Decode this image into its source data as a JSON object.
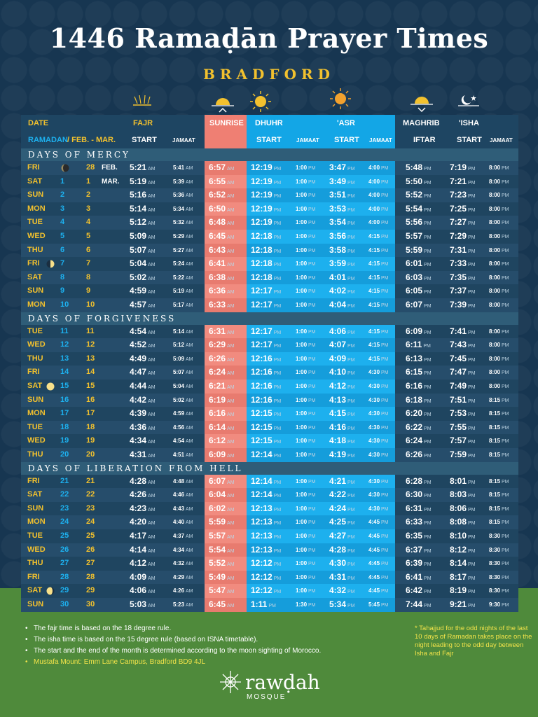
{
  "title": "1446 Ramaḍān Prayer Times",
  "subtitle": "BRADFORD",
  "headers": {
    "date": "DATE",
    "ramadan": "RAMADAN",
    "months": "/ FEB. - MAR.",
    "fajr": "FAJR",
    "start": "START",
    "jamaat": "JAMAAT",
    "sunrise": "SUNRISE",
    "dhuhr": "DHUHR",
    "asr": "'ASR",
    "maghrib": "MAGHRIB",
    "iftar": "IFTAR",
    "isha": "'ISHA"
  },
  "sections": [
    "DAYS OF MERCY",
    "DAYS OF FORGIVENESS",
    "DAYS OF LIBERATION FROM HELL"
  ],
  "rows": [
    {
      "day": "FRI",
      "ram": "",
      "greg": "28",
      "mon": "FEB.",
      "fajr": "5:21",
      "fj": "5:41",
      "sun": "6:57",
      "dhuhr": "12:19",
      "dj": "1:00",
      "asr": "3:47",
      "aj": "4:00",
      "mag": "5:48",
      "isha": "7:19",
      "ij": "8:00",
      "moon": "new"
    },
    {
      "day": "SAT",
      "ram": "1",
      "greg": "1",
      "mon": "MAR.",
      "fajr": "5:19",
      "fj": "5:39",
      "sun": "6:55",
      "dhuhr": "12:19",
      "dj": "1:00",
      "asr": "3:49",
      "aj": "4:00",
      "mag": "5:50",
      "isha": "7:21",
      "ij": "8:00",
      "moon": ""
    },
    {
      "day": "SUN",
      "ram": "2",
      "greg": "2",
      "mon": "",
      "fajr": "5:16",
      "fj": "5:36",
      "sun": "6:52",
      "dhuhr": "12:19",
      "dj": "1:00",
      "asr": "3:51",
      "aj": "4:00",
      "mag": "5:52",
      "isha": "7:23",
      "ij": "8:00",
      "moon": ""
    },
    {
      "day": "MON",
      "ram": "3",
      "greg": "3",
      "mon": "",
      "fajr": "5:14",
      "fj": "5:34",
      "sun": "6:50",
      "dhuhr": "12:19",
      "dj": "1:00",
      "asr": "3:53",
      "aj": "4:00",
      "mag": "5:54",
      "isha": "7:25",
      "ij": "8:00",
      "moon": ""
    },
    {
      "day": "TUE",
      "ram": "4",
      "greg": "4",
      "mon": "",
      "fajr": "5:12",
      "fj": "5:32",
      "sun": "6:48",
      "dhuhr": "12:19",
      "dj": "1:00",
      "asr": "3:54",
      "aj": "4:00",
      "mag": "5:56",
      "isha": "7:27",
      "ij": "8:00",
      "moon": ""
    },
    {
      "day": "WED",
      "ram": "5",
      "greg": "5",
      "mon": "",
      "fajr": "5:09",
      "fj": "5:29",
      "sun": "6:45",
      "dhuhr": "12:18",
      "dj": "1:00",
      "asr": "3:56",
      "aj": "4:15",
      "mag": "5:57",
      "isha": "7:29",
      "ij": "8:00",
      "moon": ""
    },
    {
      "day": "THU",
      "ram": "6",
      "greg": "6",
      "mon": "",
      "fajr": "5:07",
      "fj": "5:27",
      "sun": "6:43",
      "dhuhr": "12:18",
      "dj": "1:00",
      "asr": "3:58",
      "aj": "4:15",
      "mag": "5:59",
      "isha": "7:31",
      "ij": "8:00",
      "moon": ""
    },
    {
      "day": "FRI",
      "ram": "7",
      "greg": "7",
      "mon": "",
      "fajr": "5:04",
      "fj": "5:24",
      "sun": "6:41",
      "dhuhr": "12:18",
      "dj": "1:00",
      "asr": "3:59",
      "aj": "4:15",
      "mag": "6:01",
      "isha": "7:33",
      "ij": "8:00",
      "moon": "half"
    },
    {
      "day": "SAT",
      "ram": "8",
      "greg": "8",
      "mon": "",
      "fajr": "5:02",
      "fj": "5:22",
      "sun": "6:38",
      "dhuhr": "12:18",
      "dj": "1:00",
      "asr": "4:01",
      "aj": "4:15",
      "mag": "6:03",
      "isha": "7:35",
      "ij": "8:00",
      "moon": ""
    },
    {
      "day": "SUN",
      "ram": "9",
      "greg": "9",
      "mon": "",
      "fajr": "4:59",
      "fj": "5:19",
      "sun": "6:36",
      "dhuhr": "12:17",
      "dj": "1:00",
      "asr": "4:02",
      "aj": "4:15",
      "mag": "6:05",
      "isha": "7:37",
      "ij": "8:00",
      "moon": ""
    },
    {
      "day": "MON",
      "ram": "10",
      "greg": "10",
      "mon": "",
      "fajr": "4:57",
      "fj": "5:17",
      "sun": "6:33",
      "dhuhr": "12:17",
      "dj": "1:00",
      "asr": "4:04",
      "aj": "4:15",
      "mag": "6:07",
      "isha": "7:39",
      "ij": "8:00",
      "moon": ""
    },
    {
      "day": "TUE",
      "ram": "11",
      "greg": "11",
      "mon": "",
      "fajr": "4:54",
      "fj": "5:14",
      "sun": "6:31",
      "dhuhr": "12:17",
      "dj": "1:00",
      "asr": "4:06",
      "aj": "4:15",
      "mag": "6:09",
      "isha": "7:41",
      "ij": "8:00",
      "moon": ""
    },
    {
      "day": "WED",
      "ram": "12",
      "greg": "12",
      "mon": "",
      "fajr": "4:52",
      "fj": "5:12",
      "sun": "6:29",
      "dhuhr": "12:17",
      "dj": "1:00",
      "asr": "4:07",
      "aj": "4:15",
      "mag": "6:11",
      "isha": "7:43",
      "ij": "8:00",
      "moon": ""
    },
    {
      "day": "THU",
      "ram": "13",
      "greg": "13",
      "mon": "",
      "fajr": "4:49",
      "fj": "5:09",
      "sun": "6:26",
      "dhuhr": "12:16",
      "dj": "1:00",
      "asr": "4:09",
      "aj": "4:15",
      "mag": "6:13",
      "isha": "7:45",
      "ij": "8:00",
      "moon": ""
    },
    {
      "day": "FRI",
      "ram": "14",
      "greg": "14",
      "mon": "",
      "fajr": "4:47",
      "fj": "5:07",
      "sun": "6:24",
      "dhuhr": "12:16",
      "dj": "1:00",
      "asr": "4:10",
      "aj": "4:30",
      "mag": "6:15",
      "isha": "7:47",
      "ij": "8:00",
      "moon": ""
    },
    {
      "day": "SAT",
      "ram": "15",
      "greg": "15",
      "mon": "",
      "fajr": "4:44",
      "fj": "5:04",
      "sun": "6:21",
      "dhuhr": "12:16",
      "dj": "1:00",
      "asr": "4:12",
      "aj": "4:30",
      "mag": "6:16",
      "isha": "7:49",
      "ij": "8:00",
      "moon": "full"
    },
    {
      "day": "SUN",
      "ram": "16",
      "greg": "16",
      "mon": "",
      "fajr": "4:42",
      "fj": "5:02",
      "sun": "6:19",
      "dhuhr": "12:16",
      "dj": "1:00",
      "asr": "4:13",
      "aj": "4:30",
      "mag": "6:18",
      "isha": "7:51",
      "ij": "8:15",
      "moon": ""
    },
    {
      "day": "MON",
      "ram": "17",
      "greg": "17",
      "mon": "",
      "fajr": "4:39",
      "fj": "4:59",
      "sun": "6:16",
      "dhuhr": "12:15",
      "dj": "1:00",
      "asr": "4:15",
      "aj": "4:30",
      "mag": "6:20",
      "isha": "7:53",
      "ij": "8:15",
      "moon": ""
    },
    {
      "day": "TUE",
      "ram": "18",
      "greg": "18",
      "mon": "",
      "fajr": "4:36",
      "fj": "4:56",
      "sun": "6:14",
      "dhuhr": "12:15",
      "dj": "1:00",
      "asr": "4:16",
      "aj": "4:30",
      "mag": "6:22",
      "isha": "7:55",
      "ij": "8:15",
      "moon": ""
    },
    {
      "day": "WED",
      "ram": "19",
      "greg": "19",
      "mon": "",
      "fajr": "4:34",
      "fj": "4:54",
      "sun": "6:12",
      "dhuhr": "12:15",
      "dj": "1:00",
      "asr": "4:18",
      "aj": "4:30",
      "mag": "6:24",
      "isha": "7:57",
      "ij": "8:15",
      "moon": ""
    },
    {
      "day": "THU",
      "ram": "20",
      "greg": "20",
      "mon": "",
      "fajr": "4:31",
      "fj": "4:51",
      "sun": "6:09",
      "dhuhr": "12:14",
      "dj": "1:00",
      "asr": "4:19",
      "aj": "4:30",
      "mag": "6:26",
      "isha": "7:59",
      "ij": "8:15",
      "moon": ""
    },
    {
      "day": "FRI",
      "ram": "21",
      "greg": "21",
      "mon": "",
      "fajr": "4:28",
      "fj": "4:48",
      "sun": "6:07",
      "dhuhr": "12:14",
      "dj": "1:00",
      "asr": "4:21",
      "aj": "4:30",
      "mag": "6:28",
      "isha": "8:01",
      "ij": "8:15",
      "moon": ""
    },
    {
      "day": "SAT",
      "ram": "22",
      "greg": "22",
      "mon": "",
      "fajr": "4:26",
      "fj": "4:46",
      "sun": "6:04",
      "dhuhr": "12:14",
      "dj": "1:00",
      "asr": "4:22",
      "aj": "4:30",
      "mag": "6:30",
      "isha": "8:03",
      "ij": "8:15",
      "moon": ""
    },
    {
      "day": "SUN",
      "ram": "23",
      "greg": "23",
      "mon": "",
      "fajr": "4:23",
      "fj": "4:43",
      "sun": "6:02",
      "dhuhr": "12:13",
      "dj": "1:00",
      "asr": "4:24",
      "aj": "4:30",
      "mag": "6:31",
      "isha": "8:06",
      "ij": "8:15",
      "moon": ""
    },
    {
      "day": "MON",
      "ram": "24",
      "greg": "24",
      "mon": "",
      "fajr": "4:20",
      "fj": "4:40",
      "sun": "5:59",
      "dhuhr": "12:13",
      "dj": "1:00",
      "asr": "4:25",
      "aj": "4:45",
      "mag": "6:33",
      "isha": "8:08",
      "ij": "8:15",
      "moon": ""
    },
    {
      "day": "TUE",
      "ram": "25",
      "greg": "25",
      "mon": "",
      "fajr": "4:17",
      "fj": "4:37",
      "sun": "5:57",
      "dhuhr": "12:13",
      "dj": "1:00",
      "asr": "4:27",
      "aj": "4:45",
      "mag": "6:35",
      "isha": "8:10",
      "ij": "8:30",
      "moon": ""
    },
    {
      "day": "WED",
      "ram": "26",
      "greg": "26",
      "mon": "",
      "fajr": "4:14",
      "fj": "4:34",
      "sun": "5:54",
      "dhuhr": "12:13",
      "dj": "1:00",
      "asr": "4:28",
      "aj": "4:45",
      "mag": "6:37",
      "isha": "8:12",
      "ij": "8:30",
      "moon": ""
    },
    {
      "day": "THU",
      "ram": "27",
      "greg": "27",
      "mon": "",
      "fajr": "4:12",
      "fj": "4:32",
      "sun": "5:52",
      "dhuhr": "12:12",
      "dj": "1:00",
      "asr": "4:30",
      "aj": "4:45",
      "mag": "6:39",
      "isha": "8:14",
      "ij": "8:30",
      "moon": ""
    },
    {
      "day": "FRI",
      "ram": "28",
      "greg": "28",
      "mon": "",
      "fajr": "4:09",
      "fj": "4:29",
      "sun": "5:49",
      "dhuhr": "12:12",
      "dj": "1:00",
      "asr": "4:31",
      "aj": "4:45",
      "mag": "6:41",
      "isha": "8:17",
      "ij": "8:30",
      "moon": ""
    },
    {
      "day": "SAT",
      "ram": "29",
      "greg": "29",
      "mon": "",
      "fajr": "4:06",
      "fj": "4:26",
      "sun": "5:47",
      "dhuhr": "12:12",
      "dj": "1:00",
      "asr": "4:32",
      "aj": "4:45",
      "mag": "6:42",
      "isha": "8:19",
      "ij": "8:30",
      "moon": "crescent"
    },
    {
      "day": "SUN",
      "ram": "30",
      "greg": "30",
      "mon": "",
      "fajr": "5:03",
      "fj": "5:23",
      "sun": "6:45",
      "dhuhr": "1:11",
      "dj": "1:30",
      "asr": "5:34",
      "aj": "5:45",
      "mag": "7:44",
      "isha": "9:21",
      "ij": "9:30",
      "moon": ""
    }
  ],
  "notes": [
    "The fajr time is based on the 18 degree rule.",
    "The isha time is based on the 15 degree rule (based on ISNA timetable).",
    "The start and the end of the month is determined according to the moon sighting of Morocco."
  ],
  "address": "Mustafa Mount: Emm Lane Campus, Bradford BD9 4JL",
  "tahajjud": "* Tahajjud for the odd nights of the last 10 days of Ramadan takes place on the night leading to the odd day between Isha and Fajr",
  "logo": {
    "name": "rawḍah",
    "sub": "MOSQUE"
  },
  "colors": {
    "navy": "#173651",
    "yellow": "#f2c12e",
    "salmon": "#ef7f73",
    "blue": "#13a6e6",
    "green": "#4f8a3b"
  }
}
